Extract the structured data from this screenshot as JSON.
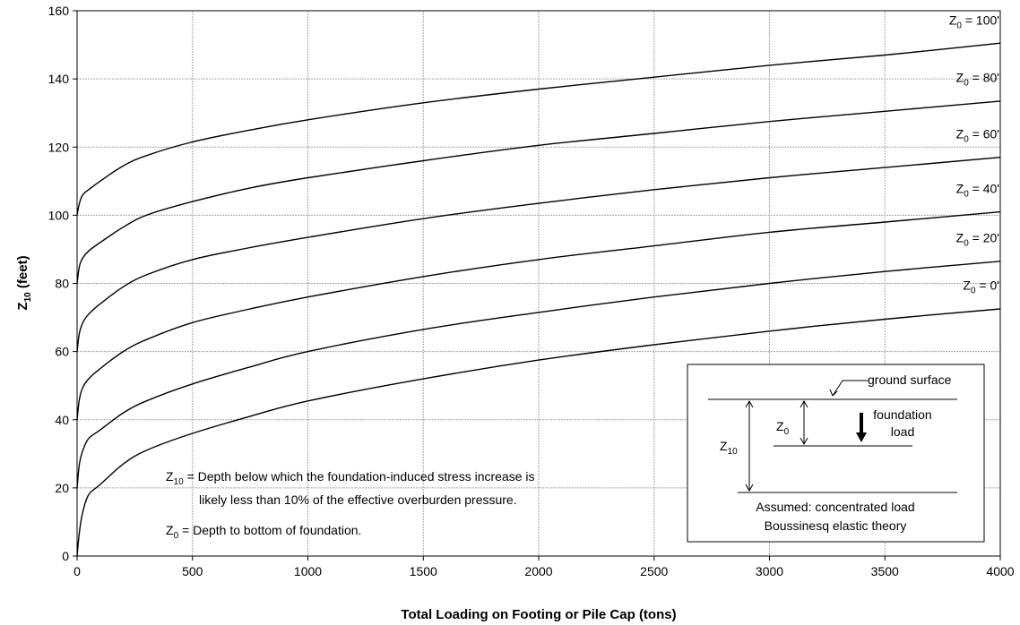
{
  "chart_data": {
    "type": "line",
    "title": "",
    "xlabel": "Total Loading on Footing or Pile Cap (tons)",
    "ylabel": "Z10 (feet)",
    "ylabel_parts": {
      "main": "Z",
      "sub": "10",
      "rest": " (feet)"
    },
    "xlim": [
      0,
      4000
    ],
    "ylim": [
      0,
      160
    ],
    "x_ticks": [
      0,
      500,
      1000,
      1500,
      2000,
      2500,
      3000,
      3500,
      4000
    ],
    "y_ticks": [
      0,
      20,
      40,
      60,
      80,
      100,
      120,
      140,
      160
    ],
    "grid": true,
    "x": [
      0,
      10,
      25,
      50,
      100,
      200,
      300,
      500,
      750,
      1000,
      1500,
      2000,
      2500,
      3000,
      3500,
      4000
    ],
    "series": [
      {
        "name": "Z0 = 0'",
        "label_main": "Z",
        "label_sub": "0",
        "label_rest": " = 0'",
        "values": [
          0,
          7,
          13,
          18,
          21,
          27,
          31,
          36,
          41,
          45.5,
          52,
          57.5,
          62,
          66,
          69.5,
          72.5
        ]
      },
      {
        "name": "Z0 = 20'",
        "label_main": "Z",
        "label_sub": "0",
        "label_rest": " = 20'",
        "values": [
          20,
          27,
          31,
          34.5,
          37,
          42,
          45.5,
          50.5,
          55.5,
          60,
          66.5,
          71.5,
          76,
          80,
          83.5,
          86.5
        ]
      },
      {
        "name": "Z0 = 40'",
        "label_main": "Z",
        "label_sub": "0",
        "label_rest": " = 40'",
        "values": [
          40,
          46,
          49.5,
          52,
          55,
          60,
          63.5,
          68.5,
          72.5,
          76,
          82,
          87,
          91,
          95,
          98,
          101
        ]
      },
      {
        "name": "Z0 = 60'",
        "label_main": "Z",
        "label_sub": "0",
        "label_rest": " = 60'",
        "values": [
          60,
          65.5,
          68.5,
          71,
          74,
          79,
          82.5,
          87,
          90.5,
          93.5,
          99,
          103.5,
          107.5,
          111,
          114,
          117
        ]
      },
      {
        "name": "Z0 = 80'",
        "label_main": "Z",
        "label_sub": "0",
        "label_rest": " = 80'",
        "values": [
          80,
          85,
          87.5,
          89.5,
          92,
          96.5,
          100,
          104,
          108,
          111,
          116,
          120.5,
          124,
          127.5,
          130.5,
          133.5
        ]
      },
      {
        "name": "Z0 = 100'",
        "label_main": "Z",
        "label_sub": "0",
        "label_rest": " = 100'",
        "values": [
          100,
          103.5,
          106,
          107.5,
          110,
          114.5,
          117.5,
          121.5,
          125,
          128,
          133,
          137,
          140.5,
          144,
          147,
          150.5
        ]
      }
    ],
    "annotations": {
      "z10_def_main": "Z",
      "z10_def_sub": "10",
      "z10_def_line1": " = Depth below which the foundation-induced stress increase is",
      "z10_def_line2": "likely less than 10% of the effective overburden pressure.",
      "z0_def_main": "Z",
      "z0_def_sub": "0",
      "z0_def_rest": " = Depth to bottom of foundation."
    },
    "inset": {
      "ground_surface": "ground surface",
      "foundation_line1": "foundation",
      "foundation_line2": "load",
      "z0_main": "Z",
      "z0_sub": "0",
      "z10_main": "Z",
      "z10_sub": "10",
      "assumed_line1": "Assumed: concentrated load",
      "assumed_line2": "Boussinesq elastic theory"
    }
  }
}
